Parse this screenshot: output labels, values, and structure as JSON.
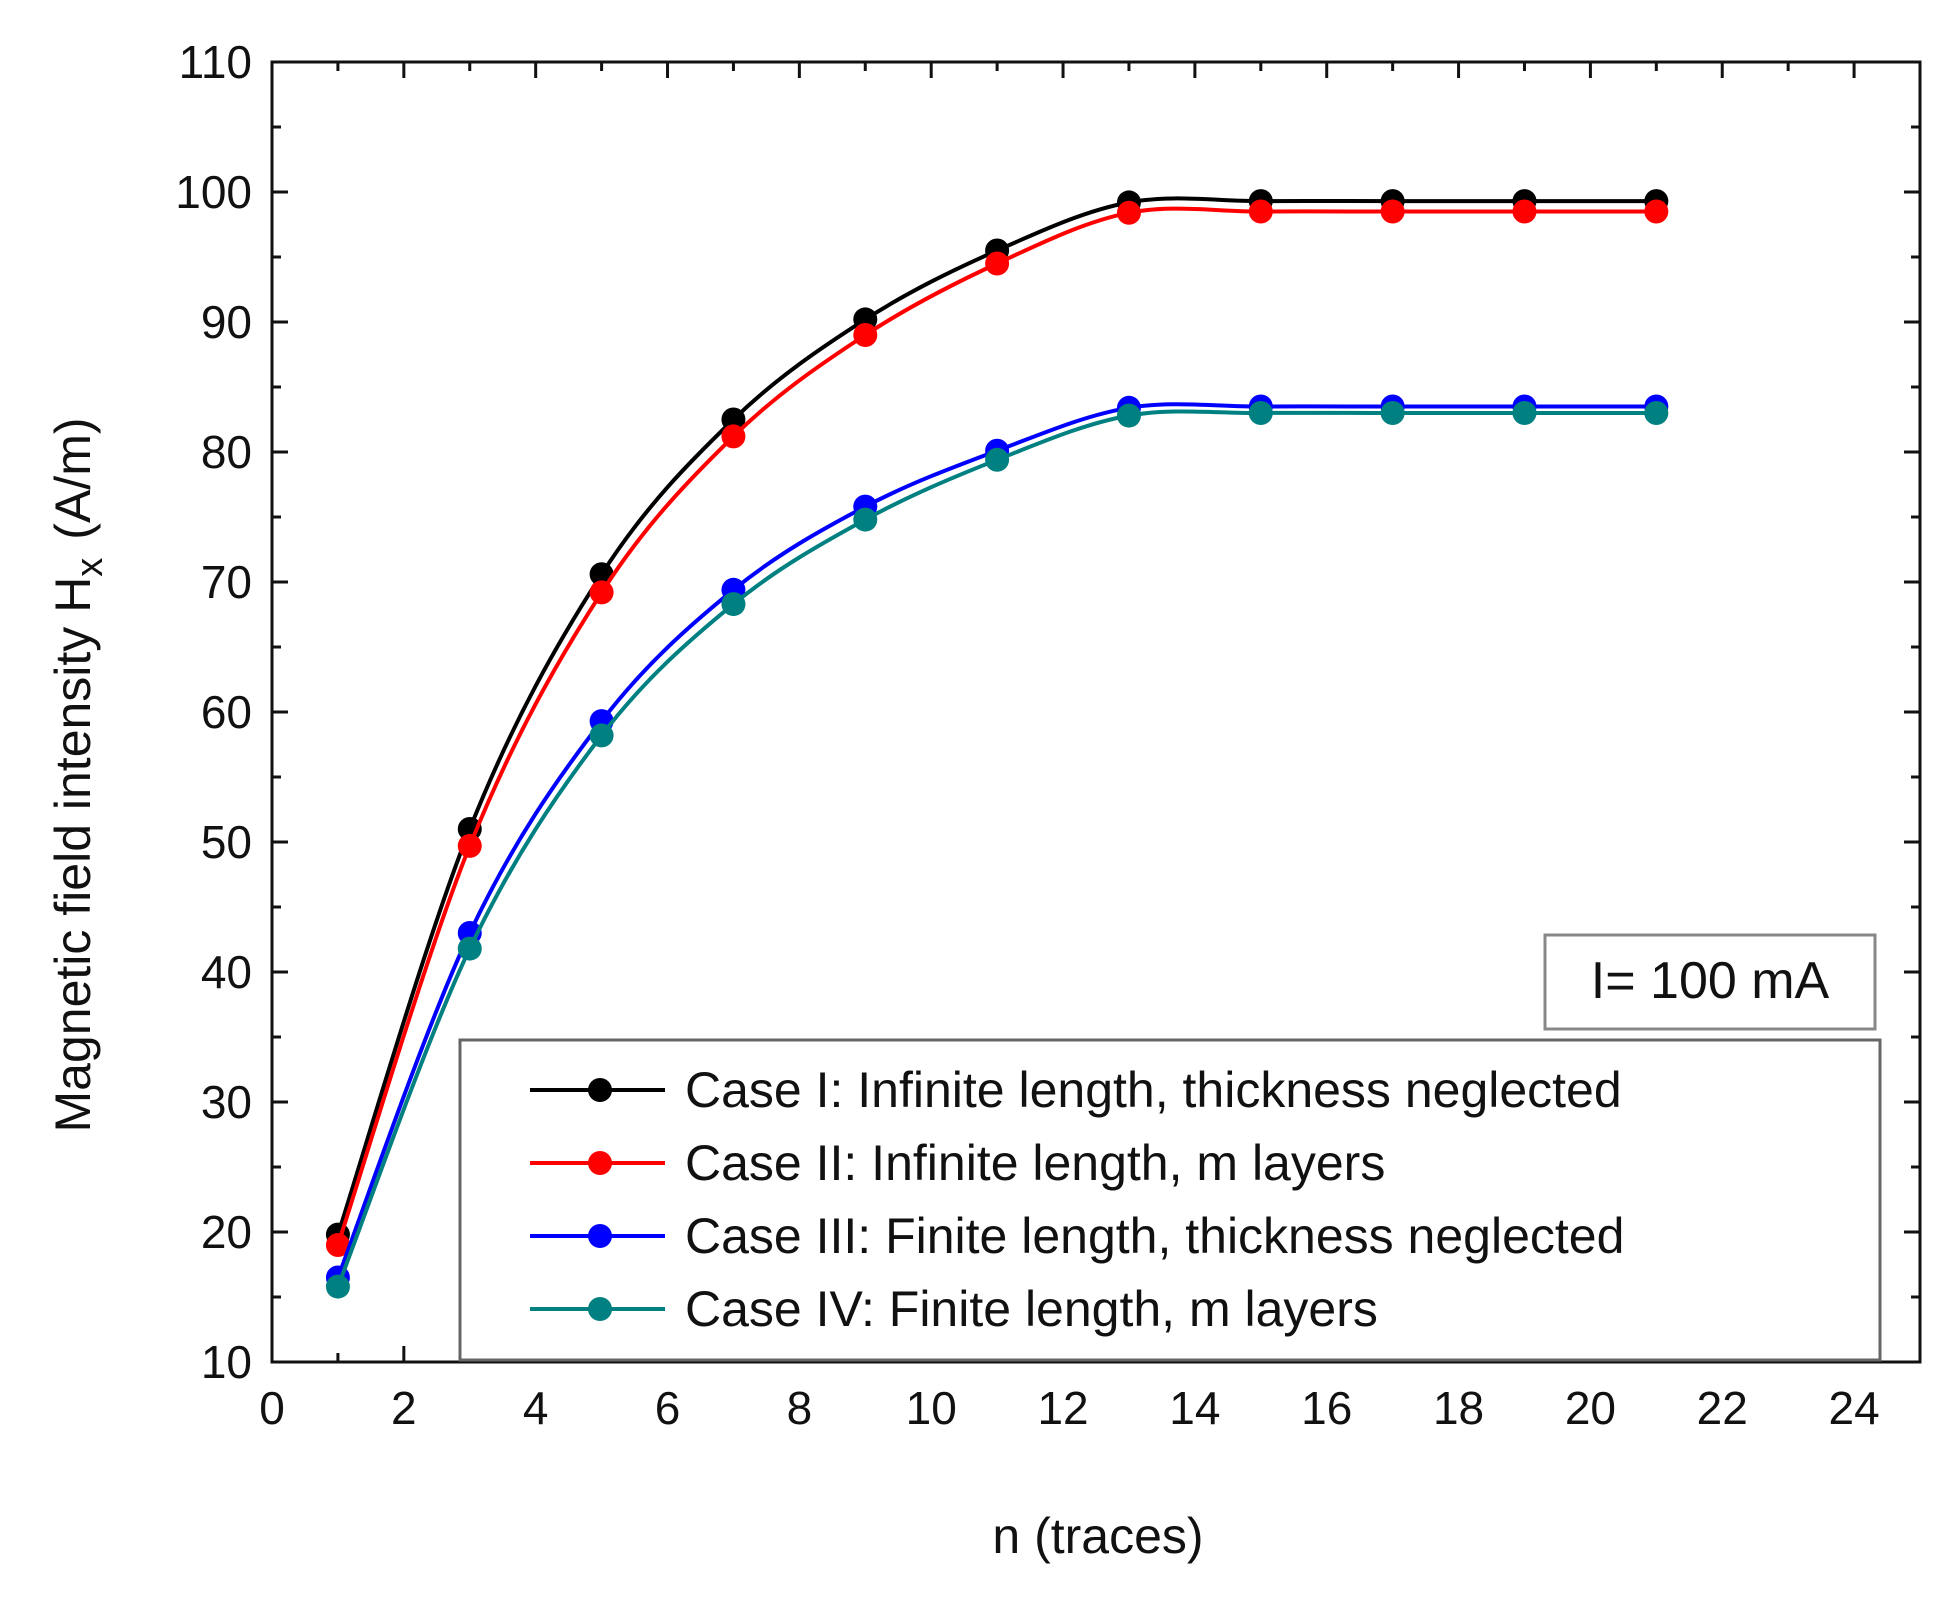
{
  "chart_data": {
    "type": "line",
    "title": "",
    "xlabel": "n (traces)",
    "ylabel": {
      "main": "Magnetic field intensity H",
      "sub": "x",
      "unit": "(A/m)"
    },
    "xlim": [
      0,
      25
    ],
    "ylim": [
      10,
      110
    ],
    "xticks": [
      0,
      2,
      4,
      6,
      8,
      10,
      12,
      14,
      16,
      18,
      20,
      22,
      24
    ],
    "yticks": [
      10,
      20,
      30,
      40,
      50,
      60,
      70,
      80,
      90,
      100,
      110
    ],
    "x": [
      1,
      3,
      5,
      7,
      9,
      11,
      13,
      15,
      17,
      19,
      21
    ],
    "series": [
      {
        "name": "Case I: Infinite length, thickness neglected",
        "color": "#000000",
        "values": [
          19.8,
          51.0,
          70.6,
          82.5,
          90.2,
          95.5,
          99.2,
          99.3,
          99.3,
          99.3,
          99.3
        ]
      },
      {
        "name": "Case II: Infinite length, m layers",
        "color": "#ff0000",
        "values": [
          19.0,
          49.7,
          69.2,
          81.2,
          89.0,
          94.5,
          98.4,
          98.5,
          98.5,
          98.5,
          98.5
        ]
      },
      {
        "name": "Case III: Finite length, thickness neglected",
        "color": "#0000ff",
        "values": [
          16.5,
          43.0,
          59.3,
          69.4,
          75.8,
          80.1,
          83.4,
          83.5,
          83.5,
          83.5,
          83.5
        ]
      },
      {
        "name": "Case IV: Finite length, m layers",
        "color": "#008080",
        "values": [
          15.8,
          41.8,
          58.2,
          68.3,
          74.8,
          79.4,
          82.8,
          83.0,
          83.0,
          83.0,
          83.0
        ]
      }
    ],
    "annotation": "I= 100 mA",
    "legend_position": "bottom-right",
    "grid": false
  }
}
